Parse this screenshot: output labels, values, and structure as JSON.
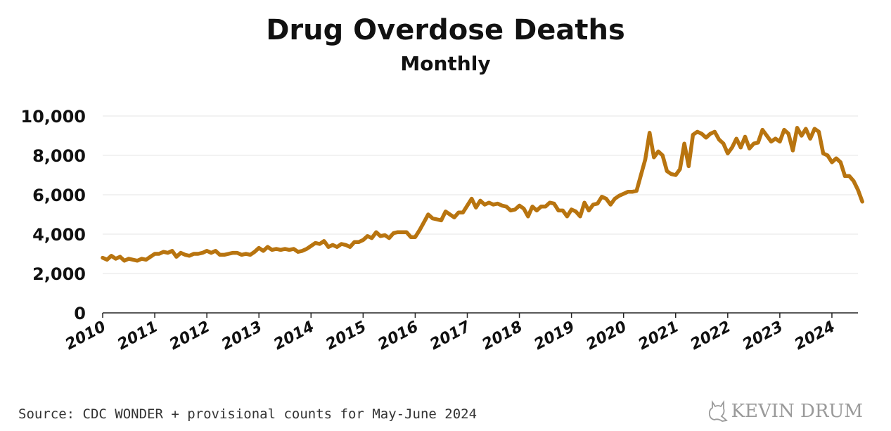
{
  "chart_data": {
    "type": "line",
    "title": "Drug Overdose Deaths",
    "subtitle": "Monthly",
    "xlabel": "",
    "ylabel": "",
    "ylim": [
      0,
      10000
    ],
    "yticks": [
      0,
      2000,
      4000,
      6000,
      8000,
      10000
    ],
    "ytick_labels": [
      "0",
      "2,000",
      "4,000",
      "6,000",
      "8,000",
      "10,000"
    ],
    "xlim": [
      2010,
      2024.5
    ],
    "xticks": [
      2010,
      2011,
      2012,
      2013,
      2014,
      2015,
      2016,
      2017,
      2018,
      2019,
      2020,
      2021,
      2022,
      2023,
      2024
    ],
    "xtick_labels": [
      "2010",
      "2011",
      "2012",
      "2013",
      "2014",
      "2015",
      "2016",
      "2017",
      "2018",
      "2019",
      "2020",
      "2021",
      "2022",
      "2023",
      "2024"
    ],
    "grid": true,
    "series": [
      {
        "name": "Drug Overdose Deaths",
        "color": "#B8740F",
        "values": [
          2800,
          2700,
          2900,
          2750,
          2850,
          2650,
          2750,
          2700,
          2650,
          2750,
          2700,
          2850,
          3000,
          3000,
          3100,
          3050,
          3150,
          2850,
          3050,
          2950,
          2900,
          3000,
          3000,
          3050,
          3150,
          3050,
          3150,
          2950,
          2950,
          3000,
          3050,
          3050,
          2950,
          3000,
          2950,
          3100,
          3300,
          3150,
          3350,
          3200,
          3250,
          3200,
          3250,
          3200,
          3250,
          3100,
          3150,
          3250,
          3400,
          3550,
          3500,
          3650,
          3350,
          3450,
          3350,
          3500,
          3450,
          3350,
          3600,
          3600,
          3700,
          3900,
          3800,
          4100,
          3900,
          3950,
          3800,
          4050,
          4100,
          4100,
          4100,
          3850,
          3850,
          4200,
          4600,
          5000,
          4800,
          4750,
          4700,
          5150,
          5000,
          4850,
          5100,
          5100,
          5450,
          5800,
          5350,
          5700,
          5500,
          5600,
          5500,
          5550,
          5450,
          5400,
          5200,
          5250,
          5450,
          5300,
          4900,
          5400,
          5200,
          5400,
          5400,
          5600,
          5550,
          5200,
          5200,
          4900,
          5250,
          5150,
          4900,
          5600,
          5200,
          5500,
          5550,
          5900,
          5800,
          5500,
          5800,
          5950,
          6050,
          6150,
          6150,
          6200,
          7000,
          7800,
          9150,
          7900,
          8200,
          8000,
          7200,
          7050,
          7000,
          7300,
          8600,
          7450,
          9050,
          9200,
          9100,
          8900,
          9100,
          9200,
          8800,
          8600,
          8100,
          8400,
          8850,
          8400,
          8950,
          8350,
          8600,
          8650,
          9300,
          9000,
          8700,
          8850,
          8700,
          9300,
          9100,
          8250,
          9400,
          9000,
          9350,
          8850,
          9350,
          9200,
          8100,
          8000,
          7650,
          7850,
          7650,
          6950,
          6950,
          6700,
          6250,
          5650
        ]
      }
    ]
  },
  "footer": {
    "source": "Source: CDC WONDER + provisional counts for May-June 2024",
    "watermark": "KEVIN DRUM",
    "watermark_icon": "cat-silhouette-icon"
  }
}
